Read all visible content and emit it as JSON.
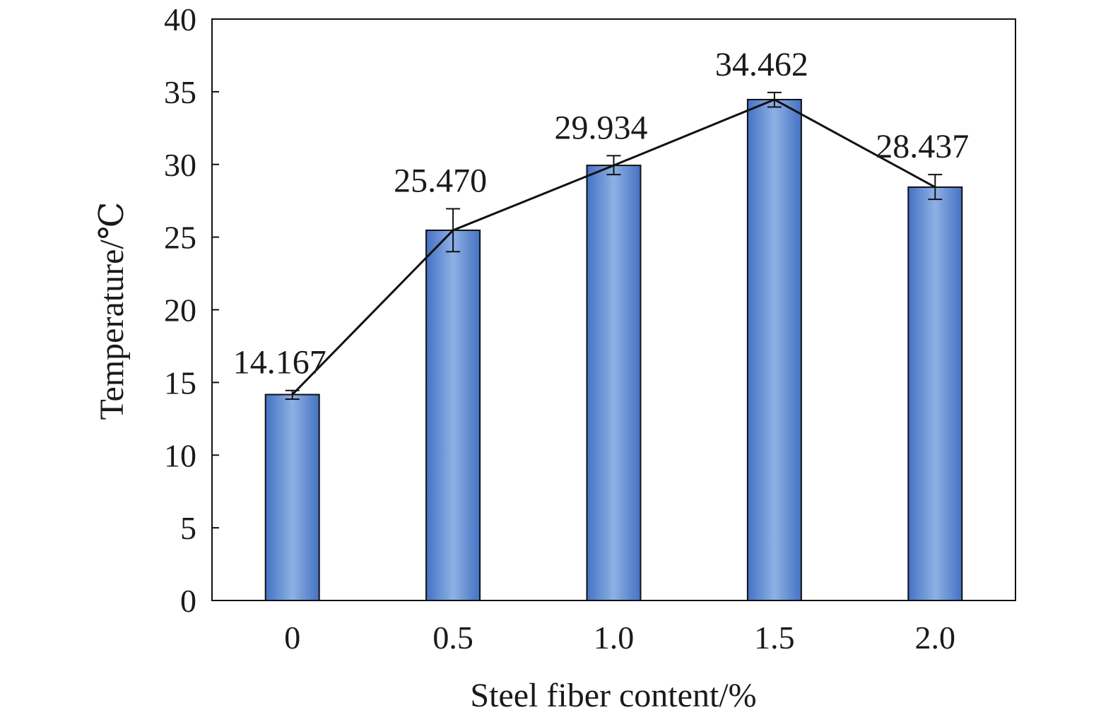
{
  "chart_data": {
    "type": "bar",
    "categories": [
      "0",
      "0.5",
      "1.0",
      "1.5",
      "2.0"
    ],
    "values": [
      14.167,
      25.47,
      29.934,
      34.462,
      28.437
    ],
    "data_labels": [
      "14.167",
      "25.470",
      "29.934",
      "34.462",
      "28.437"
    ],
    "error_bars": [
      [
        13.85,
        14.45
      ],
      [
        24.0,
        26.95
      ],
      [
        29.3,
        30.6
      ],
      [
        33.95,
        34.95
      ],
      [
        27.6,
        29.3
      ]
    ],
    "overlay_line": true,
    "title": "",
    "xlabel": "Steel fiber content/%",
    "ylabel": "Temperature/℃",
    "ylim": [
      0,
      40
    ],
    "yticks": [
      "0",
      "5",
      "10",
      "15",
      "20",
      "25",
      "30",
      "35",
      "40"
    ],
    "grid": false,
    "legend": "none",
    "colors": {
      "bar_edge": "#4472c4",
      "bar_center": "#8eb1e4",
      "bar_outline": "#111111",
      "line": "#111111"
    }
  }
}
